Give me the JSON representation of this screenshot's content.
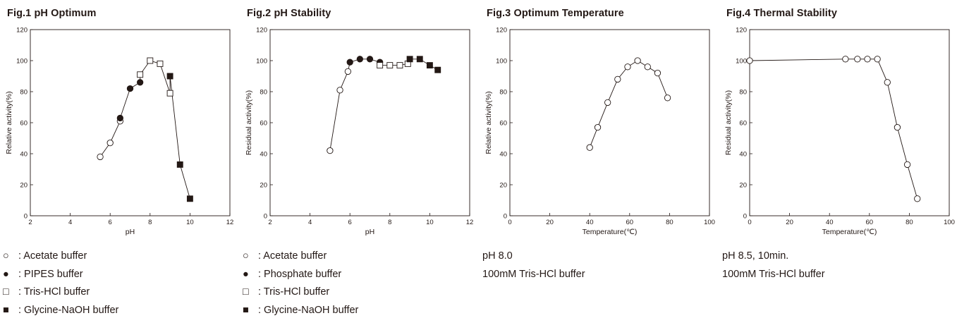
{
  "chart_data": [
    {
      "type": "scatter",
      "title": "Fig.1 pH Optimum",
      "xlabel": "pH",
      "ylabel": "Relative activity(%)",
      "xlim": [
        2,
        12
      ],
      "ylim": [
        0,
        120
      ],
      "xticks": [
        2,
        4,
        6,
        8,
        10,
        12
      ],
      "yticks": [
        0,
        20,
        40,
        60,
        80,
        100,
        120
      ],
      "grid": false,
      "connected": true,
      "series": [
        {
          "name": "Acetate buffer",
          "marker": "open-circle",
          "points": [
            [
              5.5,
              38
            ],
            [
              6.0,
              47
            ],
            [
              6.5,
              61
            ]
          ]
        },
        {
          "name": "PIPES buffer",
          "marker": "filled-circle",
          "points": [
            [
              6.5,
              63
            ],
            [
              7.0,
              82
            ],
            [
              7.5,
              86
            ]
          ]
        },
        {
          "name": "Tris-HCl buffer",
          "marker": "open-square",
          "points": [
            [
              7.5,
              91
            ],
            [
              8.0,
              100
            ],
            [
              8.5,
              98
            ],
            [
              9.0,
              79
            ]
          ]
        },
        {
          "name": "Glycine-NaOH buffer",
          "marker": "filled-square",
          "points": [
            [
              9.0,
              90
            ],
            [
              9.5,
              33
            ],
            [
              10.0,
              11
            ]
          ]
        }
      ],
      "line_path": [
        [
          5.5,
          38
        ],
        [
          6.0,
          47
        ],
        [
          6.5,
          61
        ],
        [
          6.5,
          63
        ],
        [
          7.0,
          82
        ],
        [
          7.5,
          86
        ],
        [
          7.5,
          91
        ],
        [
          8.0,
          100
        ],
        [
          8.5,
          98
        ],
        [
          9.0,
          79
        ],
        [
          9.0,
          90
        ],
        [
          9.5,
          33
        ],
        [
          10.0,
          11
        ]
      ]
    },
    {
      "type": "scatter",
      "title": "Fig.2 pH Stability",
      "xlabel": "pH",
      "ylabel": "Residual activity(%)",
      "xlim": [
        2,
        12
      ],
      "ylim": [
        0,
        120
      ],
      "xticks": [
        2,
        4,
        6,
        8,
        10,
        12
      ],
      "yticks": [
        0,
        20,
        40,
        60,
        80,
        100,
        120
      ],
      "grid": false,
      "connected": true,
      "series": [
        {
          "name": "Acetate buffer",
          "marker": "open-circle",
          "points": [
            [
              5.0,
              42
            ],
            [
              5.5,
              81
            ],
            [
              5.9,
              93
            ]
          ]
        },
        {
          "name": "Phosphate buffer",
          "marker": "filled-circle",
          "points": [
            [
              6.0,
              99
            ],
            [
              6.5,
              101
            ],
            [
              7.0,
              101
            ],
            [
              7.5,
              99
            ]
          ]
        },
        {
          "name": "Tris-HCl buffer",
          "marker": "open-square",
          "points": [
            [
              7.5,
              97
            ],
            [
              8.0,
              97
            ],
            [
              8.5,
              97
            ],
            [
              8.9,
              98
            ]
          ]
        },
        {
          "name": "Glycine-NaOH buffer",
          "marker": "filled-square",
          "points": [
            [
              9.0,
              101
            ],
            [
              9.5,
              101
            ],
            [
              10.0,
              97
            ],
            [
              10.4,
              94
            ]
          ]
        }
      ],
      "line_path": [
        [
          5.0,
          42
        ],
        [
          5.5,
          81
        ],
        [
          5.9,
          93
        ],
        [
          6.0,
          99
        ],
        [
          6.5,
          101
        ],
        [
          7.0,
          101
        ],
        [
          7.5,
          99
        ],
        [
          7.5,
          97
        ],
        [
          8.0,
          97
        ],
        [
          8.5,
          97
        ],
        [
          8.9,
          98
        ],
        [
          9.0,
          101
        ],
        [
          9.5,
          101
        ],
        [
          10.0,
          97
        ],
        [
          10.4,
          94
        ]
      ]
    },
    {
      "type": "line",
      "title": "Fig.3 Optimum Temperature",
      "xlabel": "Temperature(℃)",
      "ylabel": "Relative activity(%)",
      "xlim": [
        0,
        100
      ],
      "ylim": [
        0,
        120
      ],
      "xticks": [
        0,
        20,
        40,
        60,
        80,
        100
      ],
      "yticks": [
        0,
        20,
        40,
        60,
        80,
        100,
        120
      ],
      "grid": false,
      "connected": true,
      "series": [
        {
          "name": "",
          "marker": "open-circle",
          "points": [
            [
              40,
              44
            ],
            [
              44,
              57
            ],
            [
              49,
              73
            ],
            [
              54,
              88
            ],
            [
              59,
              96
            ],
            [
              64,
              100
            ],
            [
              69,
              96
            ],
            [
              74,
              92
            ],
            [
              79,
              76
            ]
          ]
        }
      ],
      "line_path": [
        [
          40,
          44
        ],
        [
          44,
          57
        ],
        [
          49,
          73
        ],
        [
          54,
          88
        ],
        [
          59,
          96
        ],
        [
          64,
          100
        ],
        [
          69,
          96
        ],
        [
          74,
          92
        ],
        [
          79,
          76
        ]
      ]
    },
    {
      "type": "line",
      "title": "Fig.4 Thermal Stability",
      "xlabel": "Temperature(℃)",
      "ylabel": "Residual activity(%)",
      "xlim": [
        0,
        100
      ],
      "ylim": [
        0,
        120
      ],
      "xticks": [
        0,
        20,
        40,
        60,
        80,
        100
      ],
      "yticks": [
        0,
        20,
        40,
        60,
        80,
        100,
        120
      ],
      "grid": false,
      "connected": true,
      "series": [
        {
          "name": "",
          "marker": "open-circle",
          "points": [
            [
              0,
              100
            ],
            [
              48,
              101
            ],
            [
              54,
              101
            ],
            [
              59,
              101
            ],
            [
              64,
              101
            ],
            [
              69,
              86
            ],
            [
              74,
              57
            ],
            [
              79,
              33
            ],
            [
              84,
              11
            ]
          ]
        }
      ],
      "line_path": [
        [
          0,
          100
        ],
        [
          48,
          101
        ],
        [
          54,
          101
        ],
        [
          59,
          101
        ],
        [
          64,
          101
        ],
        [
          69,
          86
        ],
        [
          74,
          57
        ],
        [
          79,
          33
        ],
        [
          84,
          11
        ]
      ]
    }
  ],
  "notes": [
    [
      {
        "symbol": "○",
        "text": ": Acetate buffer"
      },
      {
        "symbol": "●",
        "text": ": PIPES buffer"
      },
      {
        "symbol": "□",
        "text": ": Tris-HCl buffer"
      },
      {
        "symbol": "■",
        "text": ": Glycine-NaOH buffer"
      }
    ],
    [
      {
        "symbol": "○",
        "text": ": Acetate buffer"
      },
      {
        "symbol": "●",
        "text": ": Phosphate buffer"
      },
      {
        "symbol": "□",
        "text": ": Tris-HCl buffer"
      },
      {
        "symbol": "■",
        "text": ": Glycine-NaOH buffer"
      }
    ],
    [
      {
        "symbol": "",
        "text": "pH 8.0"
      },
      {
        "symbol": "",
        "text": "100mM Tris-HCl buffer"
      }
    ],
    [
      {
        "symbol": "",
        "text": "pH 8.5, 10min."
      },
      {
        "symbol": "",
        "text": "100mM Tris-HCl buffer"
      }
    ]
  ],
  "colors": {
    "ink": "#231815",
    "marker_fill_open": "#ffffff"
  }
}
